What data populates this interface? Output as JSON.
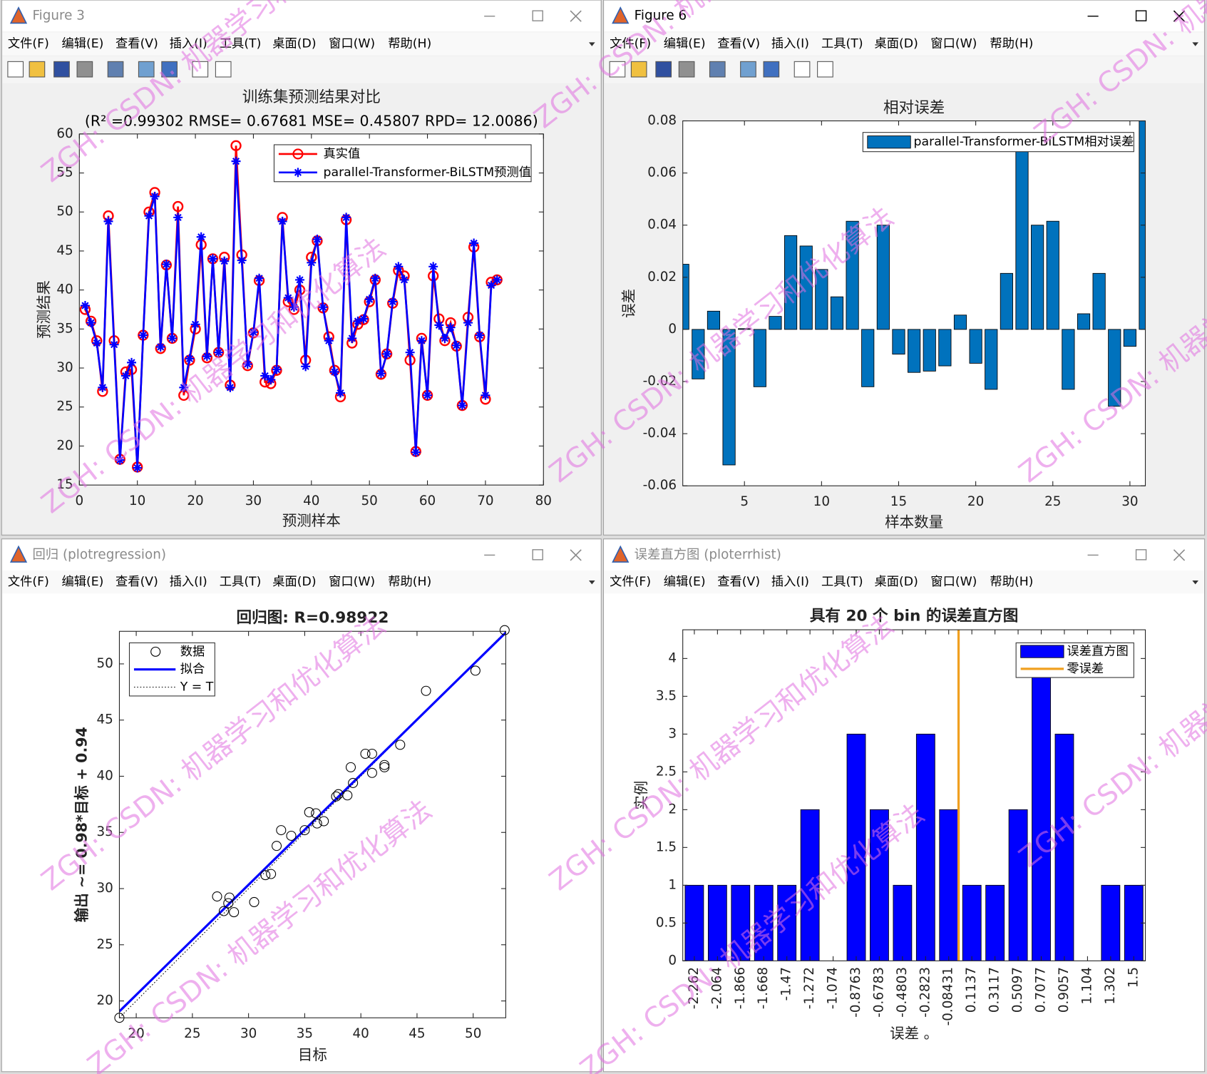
{
  "menu": [
    "文件(F)",
    "编辑(E)",
    "查看(V)",
    "插入(I)",
    "工具(T)",
    "桌面(D)",
    "窗口(W)",
    "帮助(H)"
  ],
  "watermark": [
    "ZGH:",
    "CSDN:",
    "机器学习和优化算法"
  ],
  "windows": [
    {
      "title": "Figure 3"
    },
    {
      "title": "Figure 6"
    },
    {
      "title": "回归 (plotregression)"
    },
    {
      "title": "误差直方图 (ploterrhist)"
    }
  ],
  "chart_data": [
    {
      "type": "line",
      "title": "训练集预测结果对比",
      "subtitle": "(R² =0.99302 RMSE= 0.67681 MSE= 0.45807 RPD= 12.0086)",
      "x_label": "预测样本",
      "y_label": "预测结果",
      "x": [
        1,
        2,
        3,
        4,
        5,
        6,
        7,
        8,
        9,
        10,
        11,
        12,
        13,
        14,
        15,
        16,
        17,
        18,
        19,
        20,
        21,
        22,
        23,
        24,
        25,
        26,
        27,
        28,
        29,
        30,
        31,
        32,
        33,
        34,
        35,
        36,
        37,
        38,
        39,
        40,
        41,
        42,
        43,
        44,
        45,
        46,
        47,
        48,
        49,
        50,
        51,
        52,
        53,
        54,
        55,
        56,
        57,
        58,
        59,
        60,
        61,
        62,
        63,
        64,
        65,
        66,
        67,
        68,
        69,
        70,
        71,
        72
      ],
      "series": [
        {
          "name": "真实值",
          "color": "#ff0000",
          "marker": "circle",
          "values": [
            37.5,
            36,
            33.5,
            27,
            49.5,
            33.5,
            18.3,
            29.5,
            29.8,
            17.3,
            34.2,
            50,
            52.5,
            32.5,
            43.2,
            33.8,
            50.7,
            26.5,
            31,
            35,
            45.8,
            31.3,
            44,
            32,
            44.2,
            27.8,
            58.5,
            44.5,
            30.3,
            34.5,
            41.2,
            28.2,
            28,
            29.7,
            49.3,
            38.5,
            37.5,
            40,
            31,
            44.2,
            46.3,
            37.7,
            34,
            29.7,
            26.3,
            49,
            33.2,
            35.6,
            36.2,
            38.5,
            41.3,
            29.2,
            31.8,
            38.3,
            42.5,
            41.8,
            31,
            19.3,
            33.8,
            26.5,
            41.8,
            36.3,
            33.5,
            35.8,
            32.8,
            25.2,
            36.5,
            45.5,
            34,
            26,
            41,
            41.3
          ]
        },
        {
          "name": "parallel-Transformer-BiLSTM预测值",
          "color": "#0000ff",
          "marker": "star",
          "values": [
            38,
            35.8,
            33.2,
            27.5,
            48.8,
            33,
            18.2,
            29,
            30.7,
            17.2,
            34.2,
            49.5,
            52,
            32.7,
            43.3,
            33.8,
            49.3,
            27.5,
            31.2,
            35.6,
            46.8,
            31.5,
            44,
            32,
            43.7,
            27.5,
            56.5,
            43.8,
            30.5,
            34.6,
            41.5,
            29,
            28.5,
            29.8,
            48.8,
            39,
            37.8,
            41.3,
            30.2,
            43.5,
            46.5,
            37.8,
            33.5,
            29.5,
            26.8,
            49.3,
            33.8,
            36,
            36.3,
            38.8,
            41.5,
            29.3,
            31.8,
            38.5,
            43,
            41.3,
            32,
            19.2,
            33.5,
            26.5,
            43,
            35.5,
            33.8,
            35.2,
            32.9,
            25.2,
            35.8,
            46,
            34.2,
            26.5,
            40.6,
            41.3
          ]
        }
      ],
      "xlim": [
        0,
        80
      ],
      "xticks": [
        0,
        10,
        20,
        30,
        40,
        50,
        60,
        70,
        80
      ],
      "ylim": [
        15,
        60
      ],
      "yticks": [
        15,
        20,
        25,
        30,
        35,
        40,
        45,
        50,
        55,
        60
      ],
      "legend": "northeast"
    },
    {
      "type": "bar",
      "title": "相对误差",
      "x_label": "样本数量",
      "y_label": "误差",
      "x": [
        1,
        2,
        3,
        4,
        5,
        6,
        7,
        8,
        9,
        10,
        11,
        12,
        13,
        14,
        15,
        16,
        17,
        18,
        19,
        20,
        21,
        22,
        23,
        24,
        25,
        26,
        27,
        28,
        29,
        30,
        31
      ],
      "series": [
        {
          "name": "parallel-Transformer-BiLSTM相对误差",
          "color": "#0072bd",
          "values": [
            0.025,
            -0.019,
            0.007,
            -0.052,
            0.0003,
            -0.022,
            0.005,
            0.036,
            0.032,
            0.023,
            0.0125,
            0.0415,
            -0.022,
            0.04,
            -0.0095,
            -0.0165,
            -0.016,
            -0.014,
            0.0055,
            -0.013,
            -0.023,
            0.0215,
            0.069,
            0.04,
            0.0415,
            -0.023,
            0.006,
            0.0215,
            -0.0295,
            -0.0065,
            0.08
          ]
        }
      ],
      "xlim": [
        1,
        31
      ],
      "xticks": [
        5,
        10,
        15,
        20,
        25,
        30
      ],
      "ylim": [
        -0.06,
        0.08
      ],
      "yticks": [
        -0.06,
        -0.04,
        -0.02,
        0,
        0.02,
        0.04,
        0.06,
        0.08
      ],
      "legend": "northeast"
    },
    {
      "type": "scatter",
      "title": "回归图: R=0.98922",
      "x_label": "目标",
      "y_label": "输出 ~= 0.98*目标 + 0.94",
      "series": [
        {
          "name": "数据",
          "color": "#000000",
          "x": [
            18.5,
            27.2,
            27.8,
            28.3,
            28.2,
            28.7,
            30.5,
            31.5,
            32,
            32.5,
            32.9,
            33.8,
            35,
            35.4,
            36,
            36.1,
            36.7,
            37.8,
            38,
            38.8,
            39.1,
            39.3,
            40.4,
            41,
            41,
            42.1,
            42.1,
            43.5,
            45.8,
            50.2,
            52.8
          ],
          "values": [
            18.5,
            29.3,
            28,
            29.2,
            28.7,
            27.9,
            28.8,
            31.2,
            31.3,
            33.8,
            35.2,
            34.7,
            35.2,
            36.8,
            36.7,
            35.8,
            36,
            38.2,
            38.4,
            38.3,
            40.8,
            39.4,
            42,
            42,
            40.3,
            41,
            40.8,
            42.8,
            47.6,
            49.4,
            53
          ]
        },
        {
          "name": "拟合",
          "color": "#0000ff",
          "slope": 0.98,
          "intercept": 0.94
        },
        {
          "name": "Y = T",
          "color": "#000000"
        }
      ],
      "xlim": [
        18.5,
        52.9
      ],
      "xticks": [
        20,
        25,
        30,
        35,
        40,
        45,
        50
      ],
      "ylim": [
        18.5,
        52.9
      ],
      "yticks": [
        20,
        25,
        30,
        35,
        40,
        45,
        50
      ],
      "legend": "northwest"
    },
    {
      "type": "histogram",
      "title": "具有 20 个 bin 的误差直方图",
      "x_label": "误差 。",
      "y_label": "实例",
      "bins": [
        -2.361,
        -2.163,
        -1.965,
        -1.767,
        -1.569,
        -1.371,
        -1.173,
        -0.975,
        -0.777,
        -0.579,
        -0.381,
        -0.183,
        0.015,
        0.213,
        0.411,
        0.609,
        0.807,
        1.005,
        1.203,
        1.401,
        1.599
      ],
      "series": [
        {
          "name": "误差直方图",
          "color": "#0000ff",
          "values": [
            1,
            1,
            1,
            1,
            1,
            2,
            0,
            3,
            2,
            1,
            3,
            2,
            1,
            1,
            2,
            4,
            3,
            0,
            1,
            1
          ]
        },
        {
          "name": "零误差",
          "color": "#f0a020",
          "x": 0
        }
      ],
      "xlim": [
        -2.361,
        1.599
      ],
      "xticks": [
        -2.262,
        -2.064,
        -1.866,
        -1.668,
        -1.47,
        -1.272,
        -1.074,
        -0.8763,
        -0.6783,
        -0.4803,
        -0.2823,
        -0.08431,
        0.1137,
        0.3117,
        0.5097,
        0.7077,
        0.9057,
        1.104,
        1.302,
        1.5
      ],
      "ylim": [
        0,
        4.38
      ],
      "yticks": [
        0,
        0.5,
        1,
        1.5,
        2,
        2.5,
        3,
        3.5,
        4
      ],
      "legend": "northeast"
    }
  ]
}
